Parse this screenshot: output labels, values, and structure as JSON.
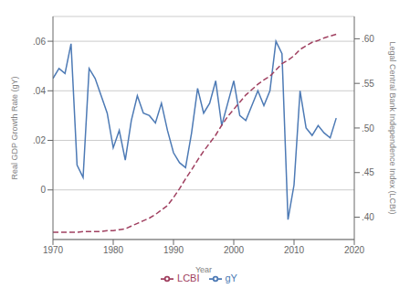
{
  "chart_data": {
    "type": "line",
    "xlabel": "Year",
    "ylabel": "Real GDP Growth Rate (gY)",
    "y2label": "Legal Central Bank Independence Index (LCBI)",
    "x": [
      1970,
      1971,
      1972,
      1973,
      1974,
      1975,
      1976,
      1977,
      1978,
      1979,
      1980,
      1981,
      1982,
      1983,
      1984,
      1985,
      1986,
      1987,
      1988,
      1989,
      1990,
      1991,
      1992,
      1993,
      1994,
      1995,
      1996,
      1997,
      1998,
      1999,
      2000,
      2001,
      2002,
      2003,
      2004,
      2005,
      2006,
      2007,
      2008,
      2009,
      2010,
      2011,
      2012,
      2013,
      2014,
      2015,
      2016,
      2017
    ],
    "series": [
      {
        "name": "gY",
        "color": "#4d7ab5",
        "line_style": "solid",
        "values": [
          0.045,
          0.049,
          0.047,
          0.059,
          0.01,
          0.005,
          0.049,
          0.045,
          0.038,
          0.031,
          0.017,
          0.024,
          0.012,
          0.028,
          0.038,
          0.031,
          0.03,
          0.027,
          0.035,
          0.024,
          0.015,
          0.011,
          0.009,
          0.023,
          0.041,
          0.031,
          0.035,
          0.044,
          0.026,
          0.035,
          0.044,
          0.03,
          0.028,
          0.034,
          0.04,
          0.034,
          0.04,
          0.06,
          0.055,
          -0.012,
          0.002,
          0.04,
          0.025,
          0.022,
          0.026,
          0.023,
          0.021,
          0.029
        ]
      },
      {
        "name": "LCBI",
        "color": "#a04060",
        "line_style": "dashed",
        "axis": "y2",
        "values": [
          0.383,
          0.383,
          0.383,
          0.383,
          0.383,
          0.384,
          0.384,
          0.384,
          0.384,
          0.385,
          0.385,
          0.386,
          0.387,
          0.39,
          0.393,
          0.396,
          0.399,
          0.403,
          0.408,
          0.413,
          0.422,
          0.432,
          0.443,
          0.453,
          0.464,
          0.474,
          0.483,
          0.492,
          0.503,
          0.513,
          0.521,
          0.529,
          0.537,
          0.543,
          0.549,
          0.554,
          0.558,
          0.565,
          0.572,
          0.576,
          0.581,
          0.588,
          0.592,
          0.596,
          0.598,
          0.601,
          0.603,
          0.605
        ]
      }
    ],
    "xlim": [
      1970,
      2020
    ],
    "xticks": [
      1970,
      1980,
      1990,
      2000,
      2010,
      2020
    ],
    "ylim": [
      -0.02,
      0.07
    ],
    "yticks": [
      0,
      {
        "value": 0.02,
        "label": ".02"
      },
      {
        "value": 0.04,
        "label": ".04"
      },
      {
        "value": 0.06,
        "label": ".06"
      }
    ],
    "y2lim": [
      0.375,
      0.625
    ],
    "y2ticks": [
      {
        "value": 0.4,
        "label": ".40"
      },
      {
        "value": 0.45,
        "label": ".45"
      },
      {
        "value": 0.5,
        "label": ".50"
      },
      {
        "value": 0.55,
        "label": ".55"
      },
      {
        "value": 0.6,
        "label": ".60"
      }
    ],
    "grid": true,
    "legend": "bottom"
  }
}
